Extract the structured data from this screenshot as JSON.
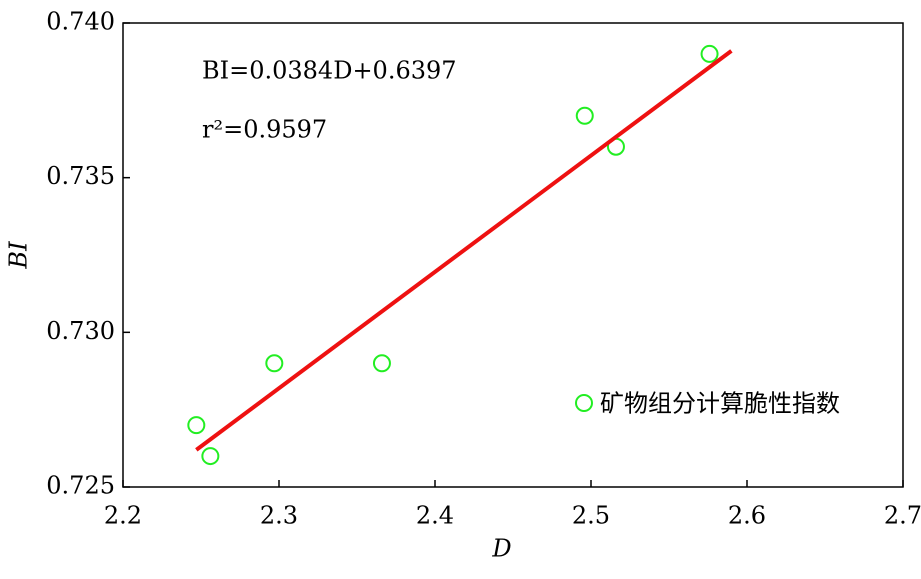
{
  "chart_data": {
    "type": "scatter",
    "xlabel": "D",
    "ylabel": "BI",
    "annotations": [
      "BI=0.0384D+0.6397",
      "r²=0.9597"
    ],
    "xlim": [
      2.2,
      2.7
    ],
    "xticks": [
      2.2,
      2.3,
      2.4,
      2.5,
      2.6,
      2.7
    ],
    "ylim": [
      0.725,
      0.74
    ],
    "yticks": [
      0.725,
      {
        "value": 0.73,
        "label": "0.730"
      },
      0.735,
      {
        "value": 0.74,
        "label": "0.740"
      }
    ],
    "legend": "lower right",
    "series": [
      {
        "name": "矿物组分计算脆性指数",
        "color": "#22ee22",
        "x": [
          2.247,
          2.256,
          2.297,
          2.366,
          2.496,
          2.516,
          2.576
        ],
        "values": [
          0.727,
          0.726,
          0.729,
          0.729,
          0.737,
          0.736,
          0.739
        ]
      },
      {
        "type": "line",
        "color": "#ee1111",
        "x": [
          2.247,
          2.59
        ],
        "values": [
          0.7262,
          0.7391
        ]
      }
    ]
  }
}
